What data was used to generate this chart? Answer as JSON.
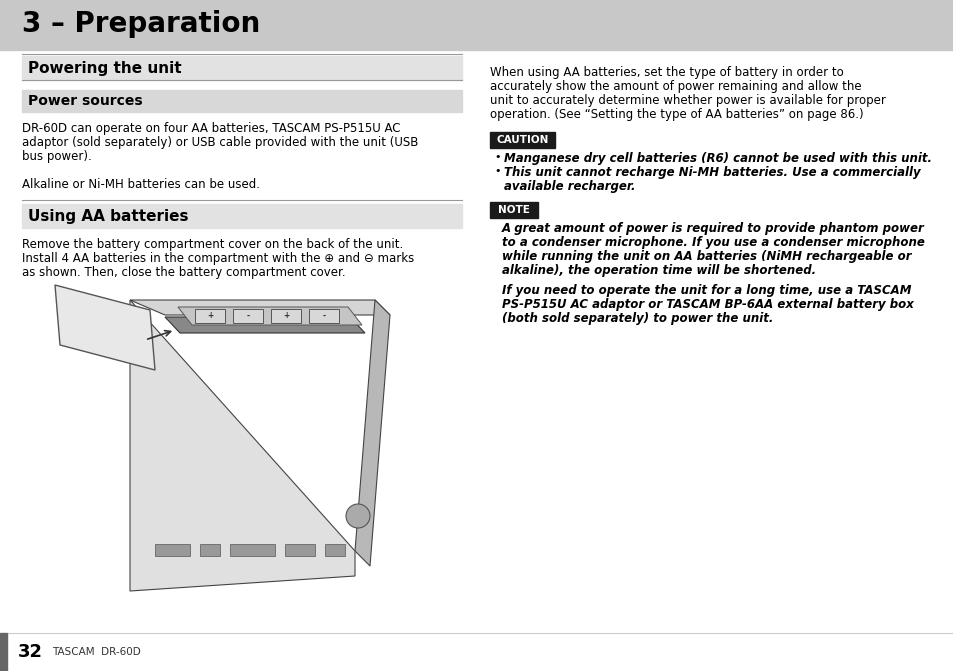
{
  "bg_color": "#ffffff",
  "header_bg": "#c8c8c8",
  "header_text": "3 – Preparation",
  "header_text_color": "#000000",
  "section1_title": "Powering the unit",
  "section1_title_bg": "#e2e2e2",
  "section2_title": "Power sources",
  "section2_title_bg": "#d8d8d8",
  "power_sources_text_line1": "DR-60D can operate on four AA batteries, TASCAM PS-P515U AC",
  "power_sources_text_line2": "adaptor (sold separately) or USB cable provided with the unit (USB",
  "power_sources_text_line3": "bus power).",
  "power_sources_text_line4": "Alkaline or Ni-MH batteries can be used.",
  "section3_title": "Using AA batteries",
  "section3_title_bg": "#e2e2e2",
  "using_aa_line1": "Remove the battery compartment cover on the back of the unit.",
  "using_aa_line2": "Install 4 AA batteries in the compartment with the ⊕ and ⊖ marks",
  "using_aa_line3": "as shown. Then, close the battery compartment cover.",
  "right_intro_line1": "When using AA batteries, set the type of battery in order to",
  "right_intro_line2": "accurately show the amount of power remaining and allow the",
  "right_intro_line3": "unit to accurately determine whether power is available for proper",
  "right_intro_line4": "operation. (See “Setting the type of AA batteries” on page 86.)",
  "caution_label": "CAUTION",
  "caution_bg": "#1a1a1a",
  "caution_fg": "#ffffff",
  "caution_bullet1": "Manganese dry cell batteries (R6) cannot be used with this unit.",
  "caution_bullet2a": "This unit cannot recharge Ni-MH batteries. Use a commercially",
  "caution_bullet2b": "available recharger.",
  "note_label": "NOTE",
  "note_bg": "#1a1a1a",
  "note_fg": "#ffffff",
  "note1_line1": "A great amount of power is required to provide phantom power",
  "note1_line2": "to a condenser microphone. If you use a condenser microphone",
  "note1_line3": "while running the unit on AA batteries (NiMH rechargeable or",
  "note1_line4": "alkaline), the operation time will be shortened.",
  "note2_line1": "If you need to operate the unit for a long time, use a TASCAM",
  "note2_line2": "PS-P515U AC adaptor or TASCAM BP-6AA external battery box",
  "note2_line3": "(both sold separately) to power the unit.",
  "footer_bar_color": "#666666",
  "footer_line_color": "#cccccc",
  "footer_page_num": "32",
  "footer_brand": "TASCAM  DR-60D"
}
